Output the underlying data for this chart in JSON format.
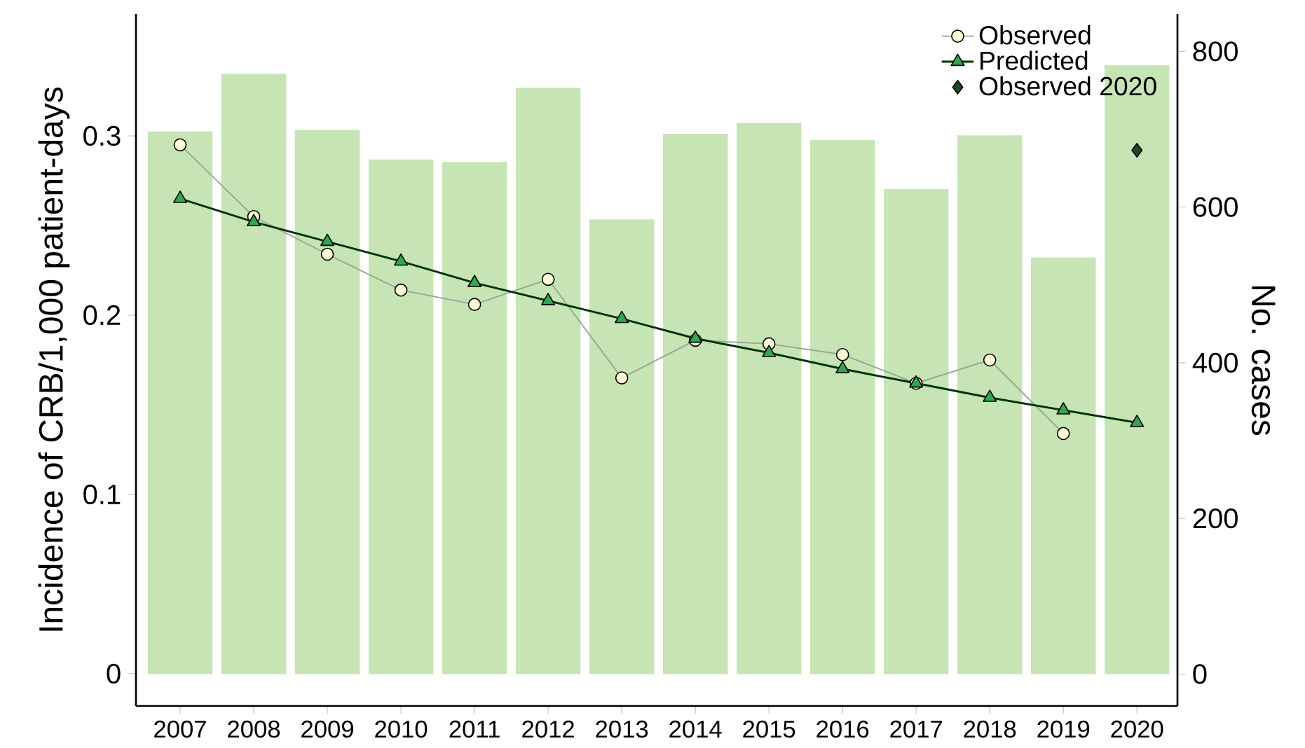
{
  "chart_data": {
    "type": "line",
    "ylabel": "Incidence of CRB/1,000 patient-days",
    "y2label": "No. cases",
    "categories": [
      "2007",
      "2008",
      "2009",
      "2010",
      "2011",
      "2012",
      "2013",
      "2014",
      "2015",
      "2016",
      "2017",
      "2018",
      "2019",
      "2020"
    ],
    "series": [
      {
        "type": "bar",
        "axis": "y2",
        "color": "#c6e4b4",
        "values": [
          697,
          771,
          699,
          661,
          658,
          753,
          584,
          694,
          708,
          686,
          623,
          692,
          535,
          782
        ]
      },
      {
        "name": "Observed",
        "color": "#9aa39a",
        "marker": "circle",
        "values": [
          0.295,
          0.255,
          0.234,
          0.214,
          0.206,
          0.22,
          0.165,
          0.186,
          0.184,
          0.178,
          0.162,
          0.175,
          0.134,
          null
        ]
      },
      {
        "name": "Predicted",
        "color": "#2fa84f",
        "marker": "triangle",
        "values": [
          0.265,
          0.252,
          0.241,
          0.23,
          0.218,
          0.208,
          0.198,
          0.187,
          0.179,
          0.17,
          0.162,
          0.154,
          0.147,
          0.14
        ]
      },
      {
        "type": "scatter",
        "name": "Observed 2020",
        "color": "#1f4a2a",
        "marker": "diamond",
        "values": [
          null,
          null,
          null,
          null,
          null,
          null,
          null,
          null,
          null,
          null,
          null,
          null,
          null,
          0.292
        ]
      }
    ],
    "ylim": [
      -0.018,
      0.368
    ],
    "yticks": [
      0,
      0.1,
      0.2,
      0.3
    ],
    "y2lim": [
      -41,
      848
    ],
    "y2ticks": [
      0,
      200,
      400,
      600,
      800
    ],
    "legend": "top right",
    "grid": false
  }
}
